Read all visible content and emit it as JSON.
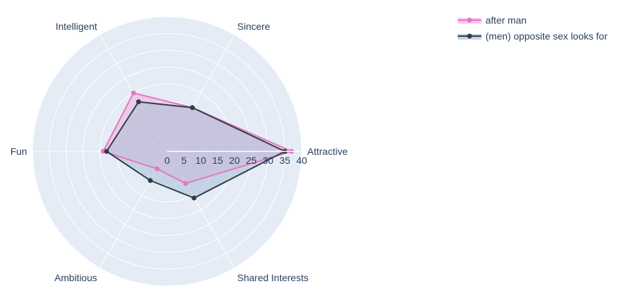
{
  "chart_data": {
    "type": "radar",
    "theta": [
      "Attractive",
      "Sincere",
      "Intelligent",
      "Fun",
      "Ambitious",
      "Shared Interests"
    ],
    "radial_ticks": [
      "0",
      "5",
      "10",
      "15",
      "20",
      "25",
      "30",
      "35",
      "40"
    ],
    "rlim": [
      0,
      40
    ],
    "grid": true,
    "legend_position": "top-right",
    "series": [
      {
        "name": "after man",
        "values": [
          37,
          15,
          20,
          19,
          6,
          11
        ],
        "line_color": "#e377c2",
        "fill_color": "#f3b0df"
      },
      {
        "name": "(men) opposite sex looks for",
        "values": [
          35,
          15,
          17,
          18,
          10,
          16
        ],
        "line_color": "#2f3e46",
        "fill_color": "#a9bfd6"
      }
    ]
  },
  "colors": {
    "polar_background": "#e5ecf6",
    "grid": "#ffffff",
    "text": "#2a3f5f"
  }
}
